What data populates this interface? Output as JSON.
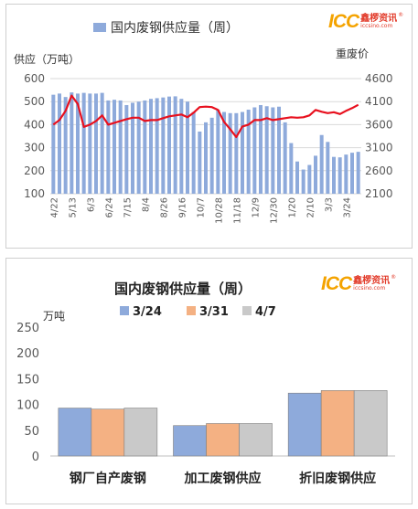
{
  "logo": {
    "brand": "ICC",
    "name_cn": "鑫椤资讯",
    "url": "iccsino.com"
  },
  "colors": {
    "bar": "#8eaadb",
    "line": "#e8101e",
    "s324": "#8eaadb",
    "s331": "#f4b183",
    "s47": "#c9c9c9",
    "axis": "#595959"
  },
  "chart_data": [
    {
      "type": "bar+line",
      "title": "国内废钢供应量（周）",
      "ylabel": "供应（万吨）",
      "y2label": "重废价",
      "legend": [
        {
          "name": "国内废钢供应量（周）",
          "kind": "bar"
        }
      ],
      "ylim": [
        100,
        600
      ],
      "yticks": [
        100,
        200,
        300,
        400,
        500,
        600
      ],
      "y2lim": [
        2100,
        4600
      ],
      "y2ticks": [
        2100,
        2600,
        3100,
        3600,
        4100,
        4600
      ],
      "xtick_labels": [
        "4/22",
        "5/13",
        "6/3",
        "6/24",
        "7/15",
        "8/4",
        "8/26",
        "9/16",
        "10/7",
        "10/28",
        "11/18",
        "12/9",
        "12/30",
        "1/20",
        "2/10",
        "3/3",
        "3/24"
      ],
      "xtick_index": [
        0,
        3,
        6,
        9,
        12,
        15,
        18,
        21,
        24,
        27,
        30,
        33,
        36,
        39,
        42,
        45,
        48
      ],
      "grid": true,
      "series": [
        {
          "kind": "bar",
          "axis": "left",
          "values": [
            530,
            535,
            520,
            540,
            535,
            538,
            535,
            535,
            538,
            505,
            508,
            505,
            485,
            495,
            500,
            505,
            512,
            515,
            518,
            522,
            523,
            512,
            500,
            455,
            370,
            410,
            430,
            465,
            455,
            450,
            450,
            455,
            465,
            475,
            485,
            480,
            475,
            478,
            410,
            320,
            240,
            205,
            225,
            265,
            355,
            325,
            260,
            258,
            270,
            278,
            282
          ]
        },
        {
          "kind": "line",
          "axis": "right",
          "values": [
            3600,
            3700,
            3900,
            4230,
            4050,
            3550,
            3600,
            3680,
            3800,
            3600,
            3640,
            3680,
            3720,
            3750,
            3750,
            3680,
            3700,
            3700,
            3740,
            3780,
            3800,
            3820,
            3760,
            3860,
            3980,
            3990,
            3980,
            3920,
            3660,
            3500,
            3330,
            3560,
            3600,
            3700,
            3700,
            3740,
            3700,
            3720,
            3740,
            3760,
            3750,
            3760,
            3800,
            3920,
            3880,
            3850,
            3870,
            3830,
            3900,
            3960,
            4030
          ]
        }
      ]
    },
    {
      "type": "bar",
      "title": "国内废钢供应量（周）",
      "ylabel": "万吨",
      "ylim": [
        0,
        250
      ],
      "yticks": [
        0,
        50,
        100,
        150,
        200,
        250
      ],
      "grid": false,
      "legend_position": "top",
      "categories": [
        "钢厂自产废钢",
        "加工废钢供应",
        "折旧废钢供应"
      ],
      "series": [
        {
          "name": "3/24",
          "values": [
            93,
            59,
            122
          ]
        },
        {
          "name": "3/31",
          "values": [
            91,
            63,
            127
          ]
        },
        {
          "name": "4/7",
          "values": [
            93,
            63,
            127
          ]
        }
      ]
    }
  ]
}
